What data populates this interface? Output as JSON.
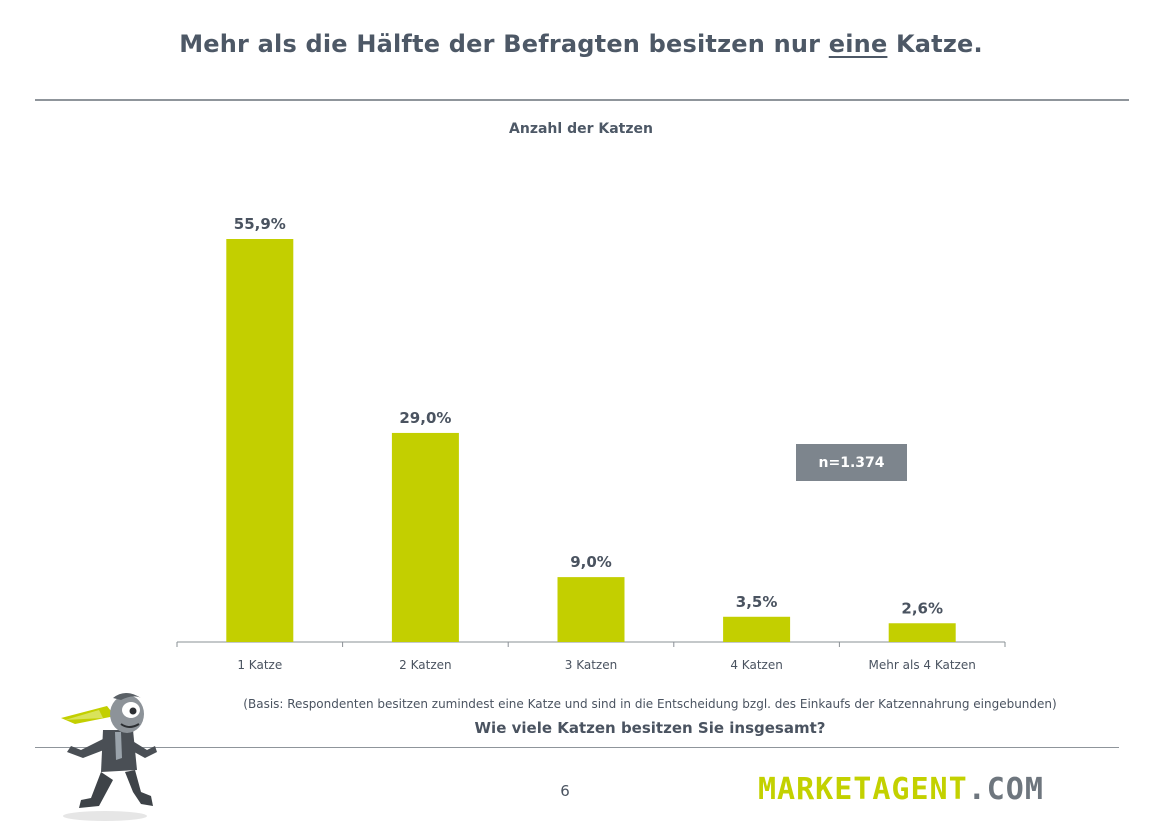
{
  "header": {
    "title_part1": "Mehr als die Hälfte der Befragten besitzen nur ",
    "title_emph": "eine",
    "title_part2": " Katze."
  },
  "chart_data": {
    "type": "bar",
    "title": "Anzahl der Katzen",
    "categories": [
      "1 Katze",
      "2 Katzen",
      "3 Katzen",
      "4 Katzen",
      "Mehr als 4 Katzen"
    ],
    "values": [
      55.9,
      29.0,
      9.0,
      3.5,
      2.6
    ],
    "value_labels": [
      "55,9%",
      "29,0%",
      "9,0%",
      "3,5%",
      "2,6%"
    ],
    "unit": "%",
    "xlabel": "",
    "ylabel": "",
    "ylim": [
      0,
      60
    ],
    "grid": false,
    "bar_color": "#c3cf00"
  },
  "sample": {
    "n_label": "n=1.374"
  },
  "footer": {
    "basis": "(Basis: Respondenten besitzen zumindest eine Katze und sind in die Entscheidung bzgl. des Einkaufs der Katzennahrung eingebunden)",
    "question": "Wie viele Katzen besitzen Sie insgesamt?",
    "page_number": "6",
    "logo_part1": "MARKETAGENT",
    "logo_part2": ".COM"
  },
  "colors": {
    "accent": "#c3cf00",
    "text": "#4a5360",
    "badge": "#7d858d"
  }
}
